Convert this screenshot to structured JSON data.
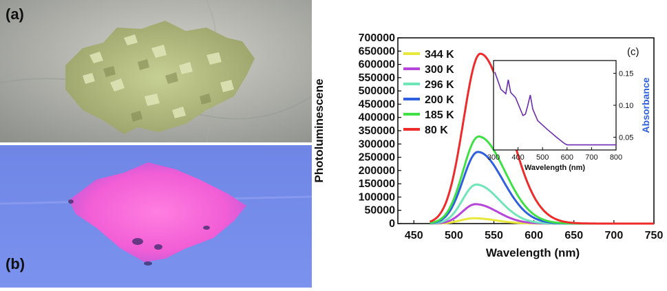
{
  "panel_a": {
    "label": "(a)"
  },
  "panel_b": {
    "label": "(b)"
  },
  "colors": {
    "s344": "#e8e83a",
    "s300": "#b645d9",
    "s296": "#6fe6b8",
    "s200": "#2f5fe0",
    "s185": "#3fe045",
    "s80": "#ee2a2a",
    "inset_line": "#6a2ab0",
    "absorbance_label": "#2d5fe0"
  },
  "chart_data": [
    {
      "type": "line",
      "panel_label": "(c)",
      "xlabel": "Wavelength (nm)",
      "ylabel": "Photoluminescene",
      "xlim": [
        430,
        750
      ],
      "ylim": [
        0,
        700000
      ],
      "xticks": [
        "450",
        "500",
        "550",
        "600",
        "650",
        "700",
        "750"
      ],
      "yticks": [
        "0",
        "50000",
        "100000",
        "150000",
        "200000",
        "250000",
        "300000",
        "350000",
        "400000",
        "450000",
        "500000",
        "550000",
        "600000",
        "650000",
        "700000"
      ],
      "legend_position": "top-left",
      "series": [
        {
          "name": "344 K",
          "peak_x": 525,
          "peak_y": 20000,
          "width": 22
        },
        {
          "name": "300 K",
          "peak_x": 527,
          "peak_y": 73000,
          "width": 22
        },
        {
          "name": "296 K",
          "peak_x": 528,
          "peak_y": 147000,
          "width": 23
        },
        {
          "name": "200 K",
          "peak_x": 530,
          "peak_y": 270000,
          "width": 25
        },
        {
          "name": "185 K",
          "peak_x": 531,
          "peak_y": 328000,
          "width": 26
        },
        {
          "name": "80 K",
          "peak_x": 533,
          "peak_y": 640000,
          "width": 28
        }
      ]
    },
    {
      "type": "line",
      "xlabel": "Wavelength (nm)",
      "ylabel": "Absorbance",
      "xlim": [
        300,
        800
      ],
      "ylim": [
        0.03,
        0.17
      ],
      "xticks": [
        "300",
        "400",
        "500",
        "600",
        "700",
        "800"
      ],
      "yticks": [
        "0.05",
        "0.10",
        "0.15"
      ],
      "x": [
        305,
        330,
        350,
        360,
        370,
        390,
        420,
        430,
        440,
        450,
        460,
        480,
        520,
        560,
        590,
        600,
        800
      ],
      "y": [
        0.152,
        0.125,
        0.118,
        0.14,
        0.12,
        0.112,
        0.084,
        0.086,
        0.1,
        0.116,
        0.094,
        0.076,
        0.062,
        0.049,
        0.04,
        0.038,
        0.038
      ]
    }
  ]
}
